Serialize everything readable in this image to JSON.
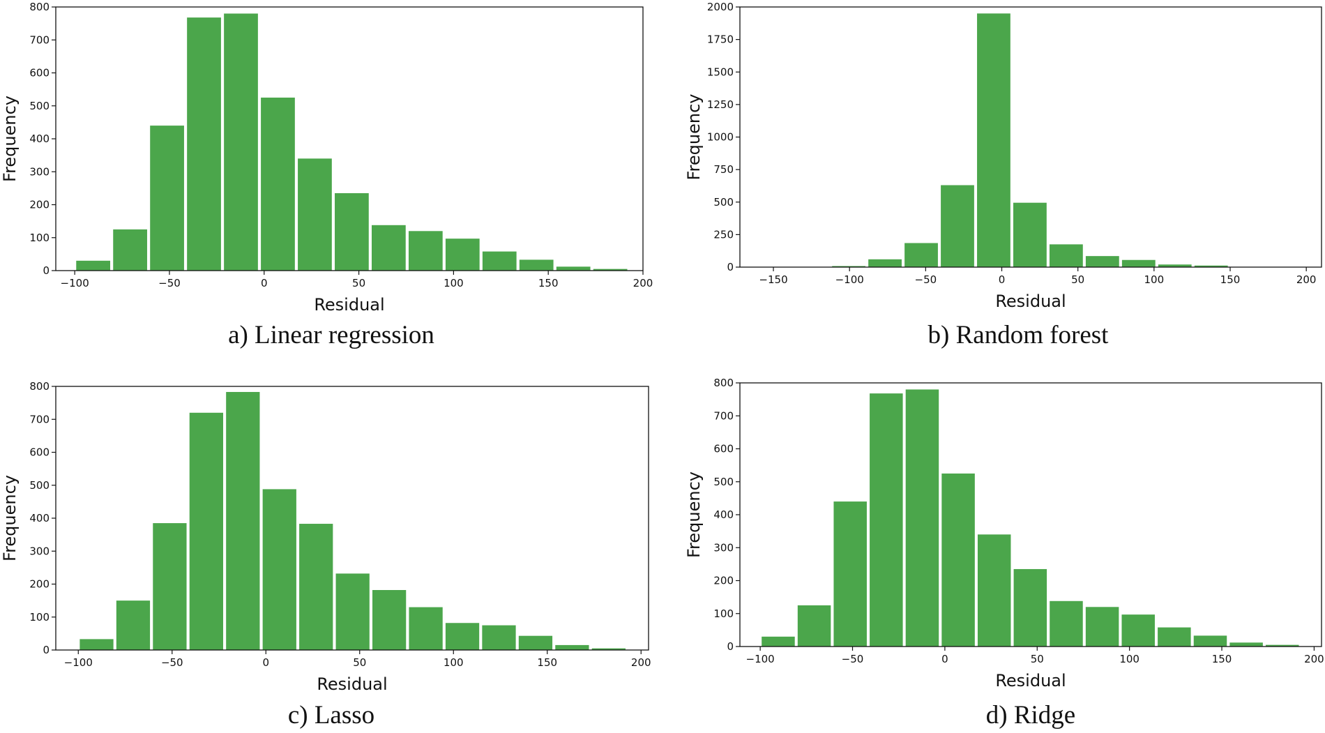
{
  "figure": {
    "bar_color": "#4ba64b",
    "panels": [
      {
        "caption": "a) Linear regression"
      },
      {
        "caption": "b) Random forest"
      },
      {
        "caption": "c) Lasso"
      },
      {
        "caption": "d) Ridge"
      }
    ]
  },
  "chart_data": [
    {
      "type": "bar",
      "xlabel": "Residual",
      "ylabel": "Frequency",
      "xlim": [
        -110,
        200
      ],
      "ylim": [
        0,
        800
      ],
      "xticks": [
        -100,
        -50,
        0,
        50,
        100,
        150,
        200
      ],
      "yticks": [
        0,
        100,
        200,
        300,
        400,
        500,
        600,
        700,
        800
      ],
      "bin_edges": [
        -100,
        -80.5,
        -61,
        -41.5,
        -22,
        -2.5,
        17,
        36.5,
        56,
        75.5,
        95,
        114.5,
        134,
        153.5,
        173,
        192.5
      ],
      "values": [
        30,
        125,
        440,
        768,
        780,
        525,
        340,
        235,
        138,
        120,
        97,
        58,
        33,
        12,
        5
      ],
      "grid": false,
      "legend": "none"
    },
    {
      "type": "bar",
      "xlabel": "Residual",
      "ylabel": "Frequency",
      "xlim": [
        -172,
        210
      ],
      "ylim": [
        0,
        2000
      ],
      "xticks": [
        -150,
        -100,
        -50,
        0,
        50,
        100,
        150,
        200
      ],
      "yticks": [
        0,
        250,
        500,
        750,
        1000,
        1250,
        1500,
        1750,
        2000
      ],
      "bin_edges": [
        -160,
        -136.2,
        -112.4,
        -88.6,
        -64.8,
        -41,
        -17.2,
        6.6,
        30.4,
        54.2,
        78,
        101.8,
        125.6,
        149.4,
        173.2,
        197
      ],
      "values": [
        0,
        0,
        8,
        60,
        185,
        630,
        1950,
        495,
        175,
        85,
        55,
        20,
        12,
        0,
        0
      ],
      "grid": false,
      "legend": "none"
    },
    {
      "type": "bar",
      "xlabel": "Residual",
      "ylabel": "Frequency",
      "xlim": [
        -112,
        204
      ],
      "ylim": [
        0,
        800
      ],
      "xticks": [
        -100,
        -50,
        0,
        50,
        100,
        150,
        200
      ],
      "yticks": [
        0,
        100,
        200,
        300,
        400,
        500,
        600,
        700,
        800
      ],
      "bin_edges": [
        -100,
        -80.5,
        -61,
        -41.5,
        -22,
        -2.5,
        17,
        36.5,
        56,
        75.5,
        95,
        114.5,
        134,
        153.5,
        173,
        192.5
      ],
      "values": [
        33,
        150,
        385,
        720,
        783,
        488,
        383,
        232,
        182,
        130,
        82,
        75,
        43,
        15,
        5
      ],
      "grid": false,
      "legend": "none"
    },
    {
      "type": "bar",
      "xlabel": "Residual",
      "ylabel": "Frequency",
      "xlim": [
        -111,
        204
      ],
      "ylim": [
        0,
        800
      ],
      "xticks": [
        -100,
        -50,
        0,
        50,
        100,
        150,
        200
      ],
      "yticks": [
        0,
        100,
        200,
        300,
        400,
        500,
        600,
        700,
        800
      ],
      "bin_edges": [
        -100,
        -80.5,
        -61,
        -41.5,
        -22,
        -2.5,
        17,
        36.5,
        56,
        75.5,
        95,
        114.5,
        134,
        153.5,
        173,
        192.5
      ],
      "values": [
        30,
        125,
        440,
        768,
        780,
        525,
        340,
        235,
        138,
        120,
        97,
        58,
        33,
        12,
        5
      ],
      "grid": false,
      "legend": "none"
    }
  ]
}
